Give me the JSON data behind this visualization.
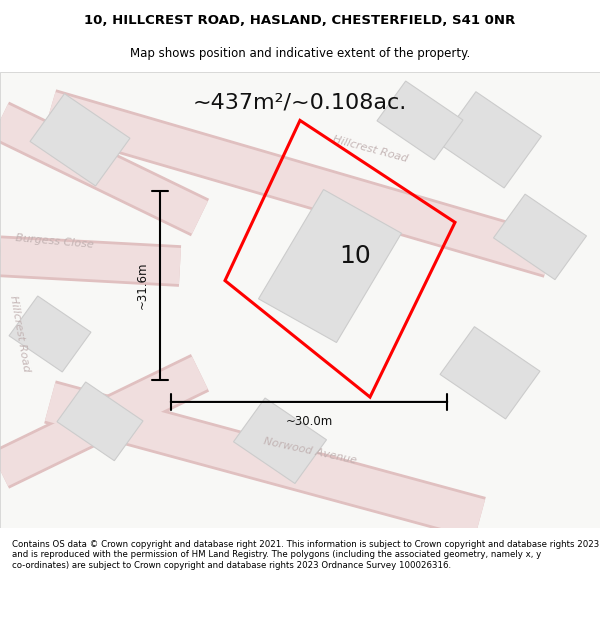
{
  "title_line1": "10, HILLCREST ROAD, HASLAND, CHESTERFIELD, S41 0NR",
  "title_line2": "Map shows position and indicative extent of the property.",
  "area_text": "~437m²/~0.108ac.",
  "property_number": "10",
  "dim_width": "~30.0m",
  "dim_height": "~31.6m",
  "footer_text": "Contains OS data © Crown copyright and database right 2021. This information is subject to Crown copyright and database rights 2023 and is reproduced with the permission of HM Land Registry. The polygons (including the associated geometry, namely x, y co-ordinates) are subject to Crown copyright and database rights 2023 Ordnance Survey 100026316.",
  "bg_color": "#f5f4f2",
  "map_bg": "#ffffff",
  "road_color_light": "#e8c8c8",
  "road_color_dark": "#d4a0a0",
  "building_color": "#dcdcdc",
  "building_edge": "#c0c0c0",
  "plot_color": "#ff0000",
  "plot_fill": "none",
  "road_label_color": "#b0b0b0",
  "title_color": "#000000",
  "footer_color": "#000000"
}
